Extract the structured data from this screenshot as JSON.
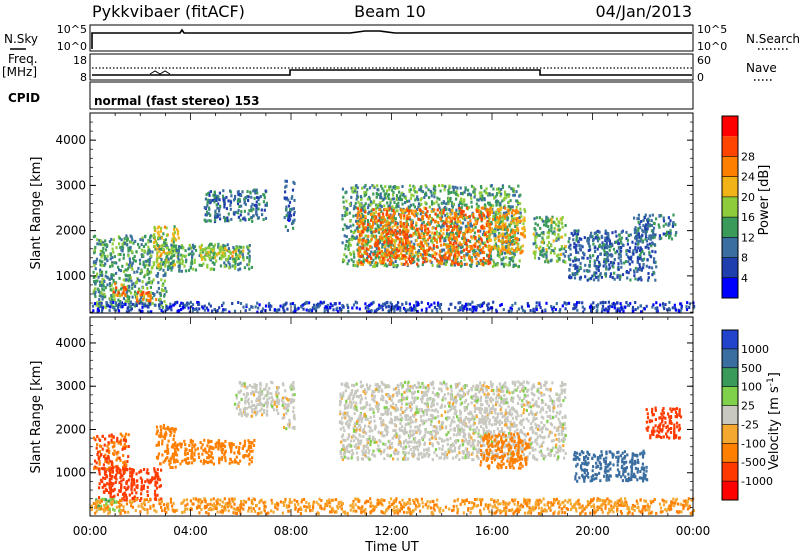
{
  "header": {
    "station": "Pykkvibaer (fitACF)",
    "beam": "Beam 10",
    "date": "04/Jan/2013"
  },
  "panels": {
    "nsky_label": "N.Sky",
    "nsky_top_tick": "10^5",
    "nsky_bottom_tick": "10^0",
    "nsearch_label": "N.Search",
    "nsearch_top_tick": "10^5",
    "nsearch_bottom_tick": "10^0",
    "freq_label_1": "Freq.",
    "freq_label_2": "[MHz]",
    "freq_top_tick": "18",
    "freq_bottom_tick": "8",
    "nave_label": "Nave",
    "nave_top_tick": "60",
    "nave_bottom_tick": "0",
    "cpid_label": "CPID",
    "cpid_text": "normal (fast stereo) 153"
  },
  "colors": {
    "power": [
      "#0000ff",
      "#1f3fae",
      "#3a6ea0",
      "#3a9a5a",
      "#8fcc3c",
      "#f2b318",
      "#ff7f00",
      "#ff4400",
      "#ff0000"
    ],
    "velocity": [
      "#2244cc",
      "#3a6ea0",
      "#3a9a5a",
      "#7fd04a",
      "#c8c8c0",
      "#f5a830",
      "#ff7f00",
      "#ff3a00",
      "#ff0000"
    ]
  },
  "chart_data": [
    {
      "type": "heatmap",
      "name": "power",
      "xlabel": "",
      "ylabel": "Slant Range [km]",
      "ylim": [
        180,
        4600
      ],
      "xlim": [
        0,
        24
      ],
      "y_ticks": [
        "1000",
        "2000",
        "3000",
        "4000"
      ],
      "colorbar": {
        "label": "Power [dB]",
        "ticks": [
          "4",
          "8",
          "12",
          "16",
          "20",
          "24",
          "28"
        ],
        "range": [
          0,
          32
        ]
      },
      "regions": [
        {
          "t0": 0.1,
          "t1": 3.0,
          "r0": 300,
          "r1": 1900,
          "value": 14
        },
        {
          "t0": 0.9,
          "t1": 1.4,
          "r0": 550,
          "r1": 850,
          "value": 26
        },
        {
          "t0": 1.8,
          "t1": 2.6,
          "r0": 400,
          "r1": 650,
          "value": 27
        },
        {
          "t0": 2.5,
          "t1": 3.5,
          "r0": 1200,
          "r1": 2100,
          "value": 20
        },
        {
          "t0": 3.0,
          "t1": 6.4,
          "r0": 1100,
          "r1": 1700,
          "value": 14
        },
        {
          "t0": 4.3,
          "t1": 6.1,
          "r0": 1350,
          "r1": 1650,
          "value": 20
        },
        {
          "t0": 4.5,
          "t1": 7.0,
          "r0": 2200,
          "r1": 2900,
          "value": 10
        },
        {
          "t0": 7.7,
          "t1": 8.1,
          "r0": 2000,
          "r1": 3100,
          "value": 8
        },
        {
          "t0": 10.0,
          "t1": 17.1,
          "r0": 1200,
          "r1": 3000,
          "value": 14
        },
        {
          "t0": 10.6,
          "t1": 15.9,
          "r0": 1250,
          "r1": 2500,
          "value": 27
        },
        {
          "t0": 15.8,
          "t1": 17.3,
          "r0": 1500,
          "r1": 2500,
          "value": 23
        },
        {
          "t0": 17.6,
          "t1": 18.9,
          "r0": 1300,
          "r1": 2300,
          "value": 16
        },
        {
          "t0": 19.0,
          "t1": 22.5,
          "r0": 900,
          "r1": 2000,
          "value": 9
        },
        {
          "t0": 21.6,
          "t1": 23.3,
          "r0": 1800,
          "r1": 2350,
          "value": 11
        },
        {
          "t0": 0.0,
          "t1": 24.0,
          "r0": 200,
          "r1": 420,
          "value": 6
        }
      ]
    },
    {
      "type": "heatmap",
      "name": "velocity",
      "xlabel": "Time UT",
      "ylabel": "Slant Range [km]",
      "ylim": [
        0,
        4600
      ],
      "xlim": [
        0,
        24
      ],
      "x_ticks": [
        "00:00",
        "04:00",
        "08:00",
        "12:00",
        "16:00",
        "20:00",
        "00:00"
      ],
      "y_ticks": [
        "1000",
        "2000",
        "3000",
        "4000"
      ],
      "colorbar": {
        "label": "Velocity [m s",
        "label_sup": "-1",
        "label_end": "]",
        "ticks": [
          "1000",
          "500",
          "100",
          "25",
          "-25",
          "-100",
          "-500",
          "-1000"
        ]
      },
      "regions": [
        {
          "t0": 0.1,
          "t1": 1.5,
          "r0": 1000,
          "r1": 1900,
          "value": -300
        },
        {
          "t0": 0.3,
          "t1": 2.8,
          "r0": 350,
          "r1": 1100,
          "value": -400
        },
        {
          "t0": 0.2,
          "t1": 1.2,
          "r0": 100,
          "r1": 400,
          "value": 60
        },
        {
          "t0": 2.6,
          "t1": 3.4,
          "r0": 1100,
          "r1": 2100,
          "value": -200
        },
        {
          "t0": 3.3,
          "t1": 6.5,
          "r0": 1200,
          "r1": 1750,
          "value": -150
        },
        {
          "t0": 5.7,
          "t1": 7.5,
          "r0": 2300,
          "r1": 3100,
          "value": 0
        },
        {
          "t0": 7.6,
          "t1": 8.1,
          "r0": 2000,
          "r1": 3100,
          "value": 0
        },
        {
          "t0": 9.9,
          "t1": 18.9,
          "r0": 1300,
          "r1": 3100,
          "value": 0
        },
        {
          "t0": 15.5,
          "t1": 17.5,
          "r0": 1100,
          "r1": 1900,
          "value": -150
        },
        {
          "t0": 19.2,
          "t1": 22.2,
          "r0": 800,
          "r1": 1500,
          "value": 400
        },
        {
          "t0": 22.1,
          "t1": 23.5,
          "r0": 1800,
          "r1": 2500,
          "value": -400
        },
        {
          "t0": 0.0,
          "t1": 24.0,
          "r0": 50,
          "r1": 400,
          "value": -60
        }
      ]
    }
  ]
}
